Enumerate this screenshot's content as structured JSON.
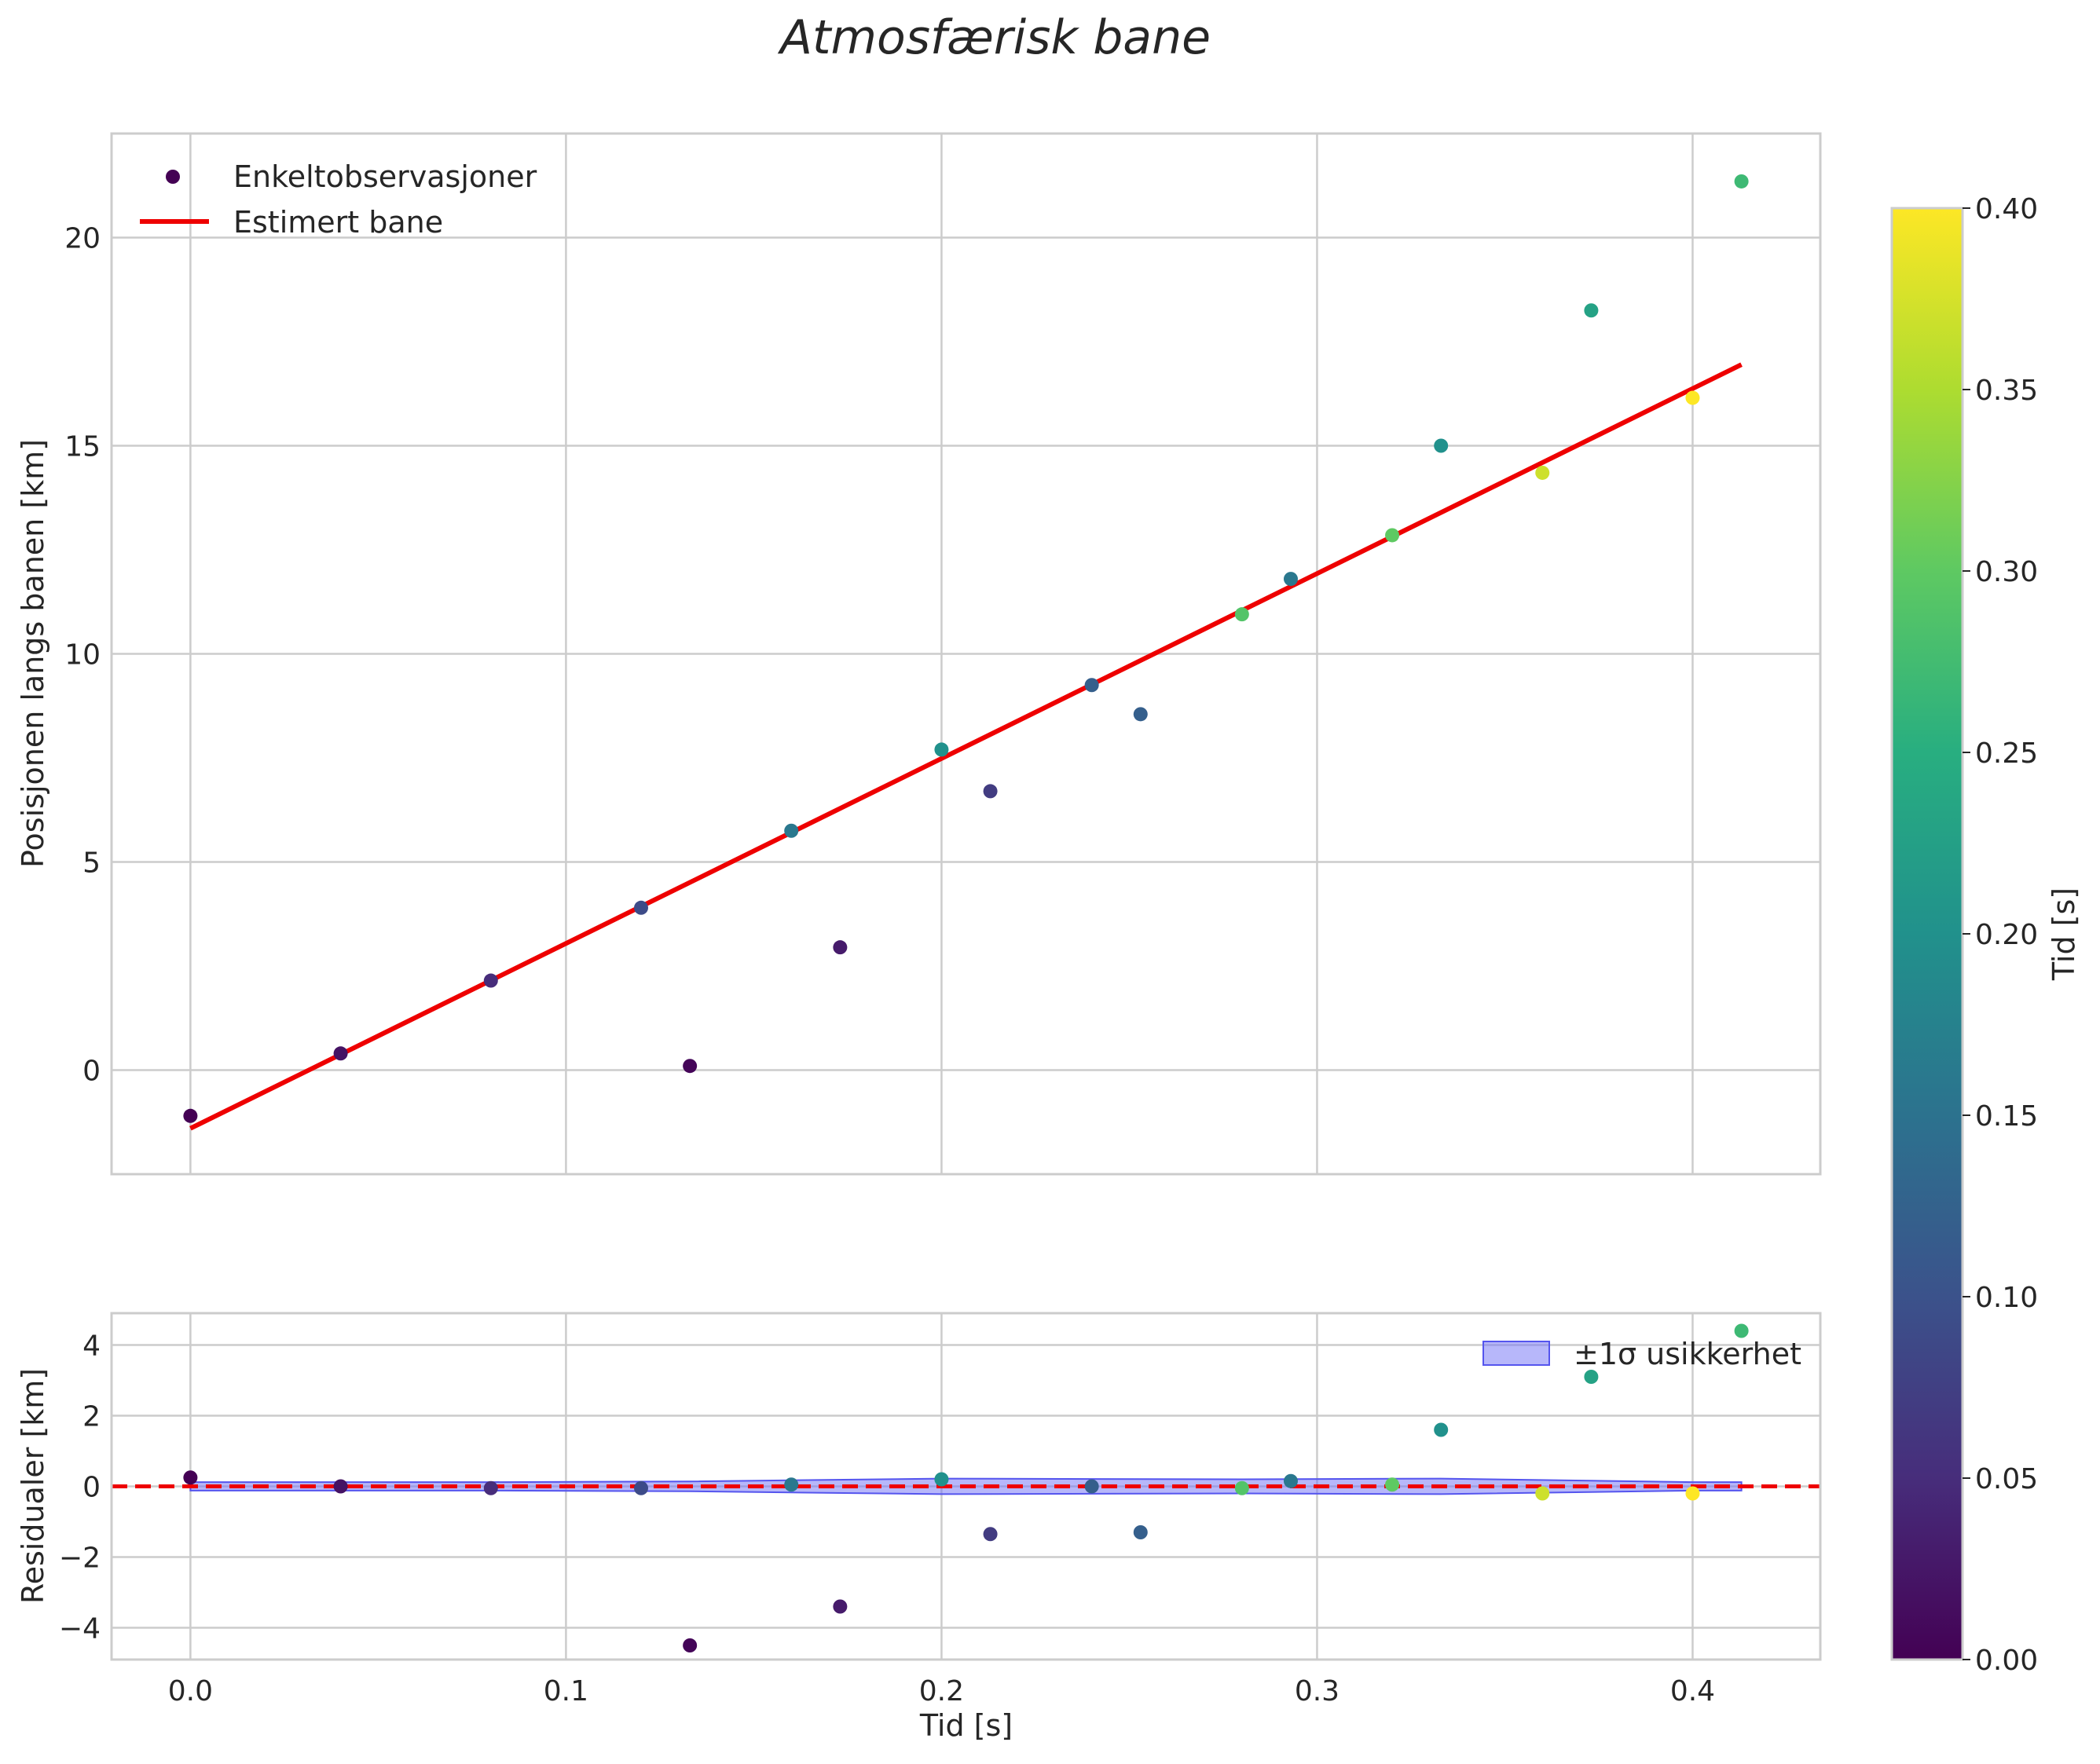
{
  "title": "Atmosfærisk bane",
  "chart_data": [
    {
      "type": "scatter",
      "panel": "top",
      "ylabel": "Posisjonen langs banen [km]",
      "xlim": [
        -0.021,
        0.434
      ],
      "ylim": [
        -2.5,
        22.5
      ],
      "xticks": [
        0.0,
        0.1,
        0.2,
        0.3,
        0.4
      ],
      "yticks": [
        0,
        5,
        10,
        15,
        20
      ],
      "ytick_labels": [
        "0",
        "5",
        "10",
        "15",
        "20"
      ],
      "grid": true,
      "legend_position": "upper-left",
      "series": [
        {
          "name": "Enkeltobservasjoner",
          "kind": "scatter",
          "colormap": "viridis",
          "points": [
            {
              "x": 0.0,
              "y": -1.1,
              "c": 0.0
            },
            {
              "x": 0.04,
              "y": 0.4,
              "c": 0.02
            },
            {
              "x": 0.08,
              "y": 2.15,
              "c": 0.05
            },
            {
              "x": 0.12,
              "y": 3.9,
              "c": 0.09
            },
            {
              "x": 0.133,
              "y": 0.1,
              "c": 0.005
            },
            {
              "x": 0.16,
              "y": 5.75,
              "c": 0.16
            },
            {
              "x": 0.173,
              "y": 2.95,
              "c": 0.03
            },
            {
              "x": 0.2,
              "y": 7.7,
              "c": 0.2
            },
            {
              "x": 0.213,
              "y": 6.7,
              "c": 0.07
            },
            {
              "x": 0.24,
              "y": 9.25,
              "c": 0.12
            },
            {
              "x": 0.253,
              "y": 8.55,
              "c": 0.12
            },
            {
              "x": 0.28,
              "y": 10.95,
              "c": 0.29
            },
            {
              "x": 0.293,
              "y": 11.8,
              "c": 0.16
            },
            {
              "x": 0.32,
              "y": 12.85,
              "c": 0.3
            },
            {
              "x": 0.333,
              "y": 15.0,
              "c": 0.2
            },
            {
              "x": 0.36,
              "y": 14.35,
              "c": 0.37
            },
            {
              "x": 0.373,
              "y": 18.25,
              "c": 0.23
            },
            {
              "x": 0.4,
              "y": 16.15,
              "c": 0.4
            },
            {
              "x": 0.413,
              "y": 21.35,
              "c": 0.27
            }
          ]
        },
        {
          "name": "Estimert bane",
          "kind": "line",
          "color": "#ee0000",
          "x": [
            0.0,
            0.413
          ],
          "y": [
            -1.4,
            16.95
          ]
        }
      ]
    },
    {
      "type": "scatter",
      "panel": "bottom",
      "xlabel": "Tid [s]",
      "ylabel": "Residualer [km]",
      "xlim": [
        -0.021,
        0.434
      ],
      "ylim": [
        -4.9,
        4.9
      ],
      "xticks": [
        0.0,
        0.1,
        0.2,
        0.3,
        0.4
      ],
      "xtick_labels": [
        "0.0",
        "0.1",
        "0.2",
        "0.3",
        "0.4"
      ],
      "yticks": [
        -4,
        -2,
        0,
        2,
        4
      ],
      "ytick_labels": [
        "−4",
        "−2",
        "0",
        "2",
        "4"
      ],
      "grid": true,
      "legend_position": "upper-right",
      "band": {
        "name": "±1σ usikkerhet",
        "color": "#6f6ff5",
        "x": [
          0.0,
          0.08,
          0.133,
          0.2,
          0.28,
          0.333,
          0.4,
          0.413
        ],
        "upper": [
          0.12,
          0.12,
          0.14,
          0.22,
          0.2,
          0.22,
          0.12,
          0.12
        ],
        "lower": [
          -0.12,
          -0.12,
          -0.14,
          -0.22,
          -0.2,
          -0.22,
          -0.12,
          -0.12
        ]
      },
      "reference_line": {
        "y": 0,
        "color": "#ee0000",
        "style": "dashed"
      },
      "points": [
        {
          "x": 0.0,
          "y": 0.25,
          "c": 0.0
        },
        {
          "x": 0.04,
          "y": 0.0,
          "c": 0.02
        },
        {
          "x": 0.08,
          "y": -0.05,
          "c": 0.05
        },
        {
          "x": 0.12,
          "y": -0.05,
          "c": 0.09
        },
        {
          "x": 0.133,
          "y": -4.5,
          "c": 0.005
        },
        {
          "x": 0.16,
          "y": 0.05,
          "c": 0.16
        },
        {
          "x": 0.173,
          "y": -3.4,
          "c": 0.03
        },
        {
          "x": 0.2,
          "y": 0.2,
          "c": 0.2
        },
        {
          "x": 0.213,
          "y": -1.35,
          "c": 0.07
        },
        {
          "x": 0.24,
          "y": 0.0,
          "c": 0.12
        },
        {
          "x": 0.253,
          "y": -1.3,
          "c": 0.12
        },
        {
          "x": 0.28,
          "y": -0.05,
          "c": 0.29
        },
        {
          "x": 0.293,
          "y": 0.15,
          "c": 0.16
        },
        {
          "x": 0.32,
          "y": 0.05,
          "c": 0.3
        },
        {
          "x": 0.333,
          "y": 1.6,
          "c": 0.2
        },
        {
          "x": 0.36,
          "y": -0.2,
          "c": 0.37
        },
        {
          "x": 0.373,
          "y": 3.1,
          "c": 0.23
        },
        {
          "x": 0.4,
          "y": -0.2,
          "c": 0.4
        },
        {
          "x": 0.413,
          "y": 4.4,
          "c": 0.27
        }
      ]
    }
  ],
  "colorbar": {
    "label": "Tid [s]",
    "colormap": "viridis",
    "range": [
      0.0,
      0.4
    ],
    "ticks": [
      0.0,
      0.05,
      0.1,
      0.15,
      0.2,
      0.25,
      0.3,
      0.35,
      0.4
    ],
    "tick_labels": [
      "0.00",
      "0.05",
      "0.10",
      "0.15",
      "0.20",
      "0.25",
      "0.30",
      "0.35",
      "0.40"
    ]
  },
  "colors": {
    "line": "#ee0000",
    "band": "#6f6ff5",
    "grid": "#cccccc"
  }
}
